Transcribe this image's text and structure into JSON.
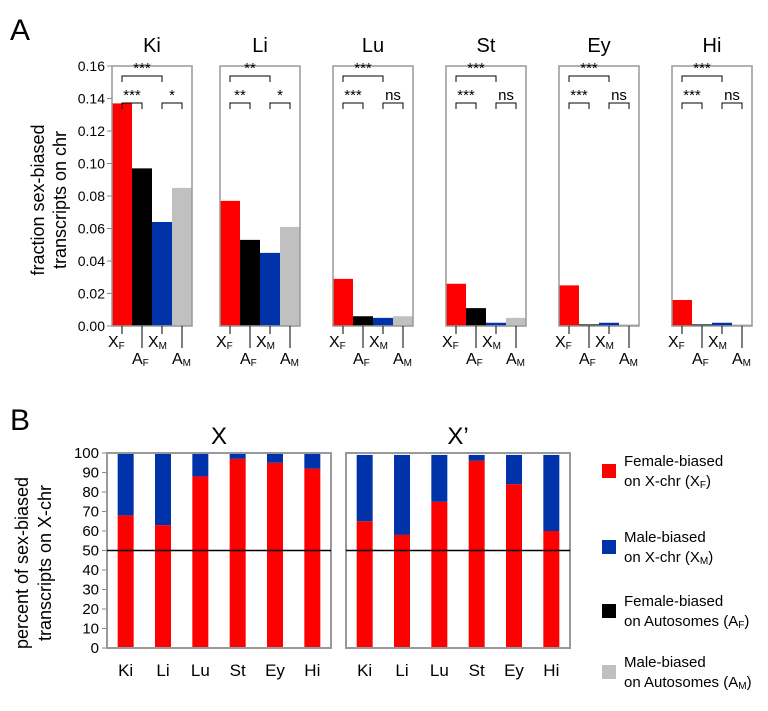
{
  "panel_a": {
    "letter": "A",
    "ylabel_line1": "fraction sex-biased",
    "ylabel_line2": "transcripts on chr"
  },
  "panel_b": {
    "letter": "B",
    "ylabel_line1": "percent of sex-biased",
    "ylabel_line2": "transcripts on X-chr"
  },
  "legend": {
    "items": [
      {
        "line1": "Female-biased",
        "line2": "on X-chr (X",
        "sub": "F",
        "color": "#ff0000"
      },
      {
        "line1": "Male-biased",
        "line2": "on X-chr (X",
        "sub": "M",
        "color": "#0033aa"
      },
      {
        "line1": "Female-biased",
        "line2": "on Autosomes (A",
        "sub": "F",
        "color": "#000000"
      },
      {
        "line1": "Male-biased",
        "line2": "on Autosomes (A",
        "sub": "M",
        "color": "#c0c0c0"
      }
    ]
  },
  "chart_data": [
    {
      "type": "bar",
      "panel": "A",
      "ylim": [
        0,
        0.16
      ],
      "yticks": [
        "0.00",
        "0.02",
        "0.04",
        "0.06",
        "0.08",
        "0.10",
        "0.12",
        "0.14",
        "0.16"
      ],
      "categories": [
        "XF",
        "AF",
        "XM",
        "AM"
      ],
      "category_labels": [
        {
          "main": "X",
          "sub": "F"
        },
        {
          "main": "A",
          "sub": "F"
        },
        {
          "main": "X",
          "sub": "M"
        },
        {
          "main": "A",
          "sub": "M"
        }
      ],
      "colors": [
        "#ff0000",
        "#000000",
        "#0033aa",
        "#c0c0c0"
      ],
      "tissues": [
        {
          "name": "Ki",
          "values": [
            0.137,
            0.097,
            0.064,
            0.085
          ],
          "sig_top": "***",
          "sig_left": "***",
          "sig_right": "*"
        },
        {
          "name": "Li",
          "values": [
            0.077,
            0.053,
            0.045,
            0.061
          ],
          "sig_top": "**",
          "sig_left": "**",
          "sig_right": "*"
        },
        {
          "name": "Lu",
          "values": [
            0.029,
            0.006,
            0.005,
            0.006
          ],
          "sig_top": "***",
          "sig_left": "***",
          "sig_right": "ns"
        },
        {
          "name": "St",
          "values": [
            0.026,
            0.011,
            0.002,
            0.005
          ],
          "sig_top": "***",
          "sig_left": "***",
          "sig_right": "ns"
        },
        {
          "name": "Ey",
          "values": [
            0.025,
            0.001,
            0.002,
            0.001
          ],
          "sig_top": "***",
          "sig_left": "***",
          "sig_right": "ns"
        },
        {
          "name": "Hi",
          "values": [
            0.016,
            0.001,
            0.002,
            0.001
          ],
          "sig_top": "***",
          "sig_left": "***",
          "sig_right": "ns"
        }
      ]
    },
    {
      "type": "bar",
      "stacked": true,
      "panel": "B",
      "ylim": [
        0,
        100
      ],
      "yticks": [
        "0",
        "10",
        "20",
        "30",
        "40",
        "50",
        "60",
        "70",
        "80",
        "90",
        "100"
      ],
      "reference_line": 50,
      "charts": [
        {
          "title": "X",
          "categories": [
            "Ki",
            "Li",
            "Lu",
            "St",
            "Ey",
            "Hi"
          ],
          "series": [
            {
              "key": "XF",
              "color": "#ff0000",
              "values": [
                68,
                63,
                88,
                97,
                95,
                92
              ]
            },
            {
              "key": "XM",
              "color": "#0033aa",
              "values": [
                32,
                37,
                12,
                3,
                5,
                8
              ]
            }
          ]
        },
        {
          "title": "X’",
          "categories": [
            "Ki",
            "Li",
            "Lu",
            "St",
            "Ey",
            "Hi"
          ],
          "series": [
            {
              "key": "XF",
              "color": "#ff0000",
              "values": [
                65,
                58,
                75,
                96,
                84,
                60
              ]
            },
            {
              "key": "XM",
              "color": "#0033aa",
              "values": [
                34,
                41,
                24,
                3,
                15,
                39
              ]
            }
          ]
        }
      ]
    }
  ]
}
